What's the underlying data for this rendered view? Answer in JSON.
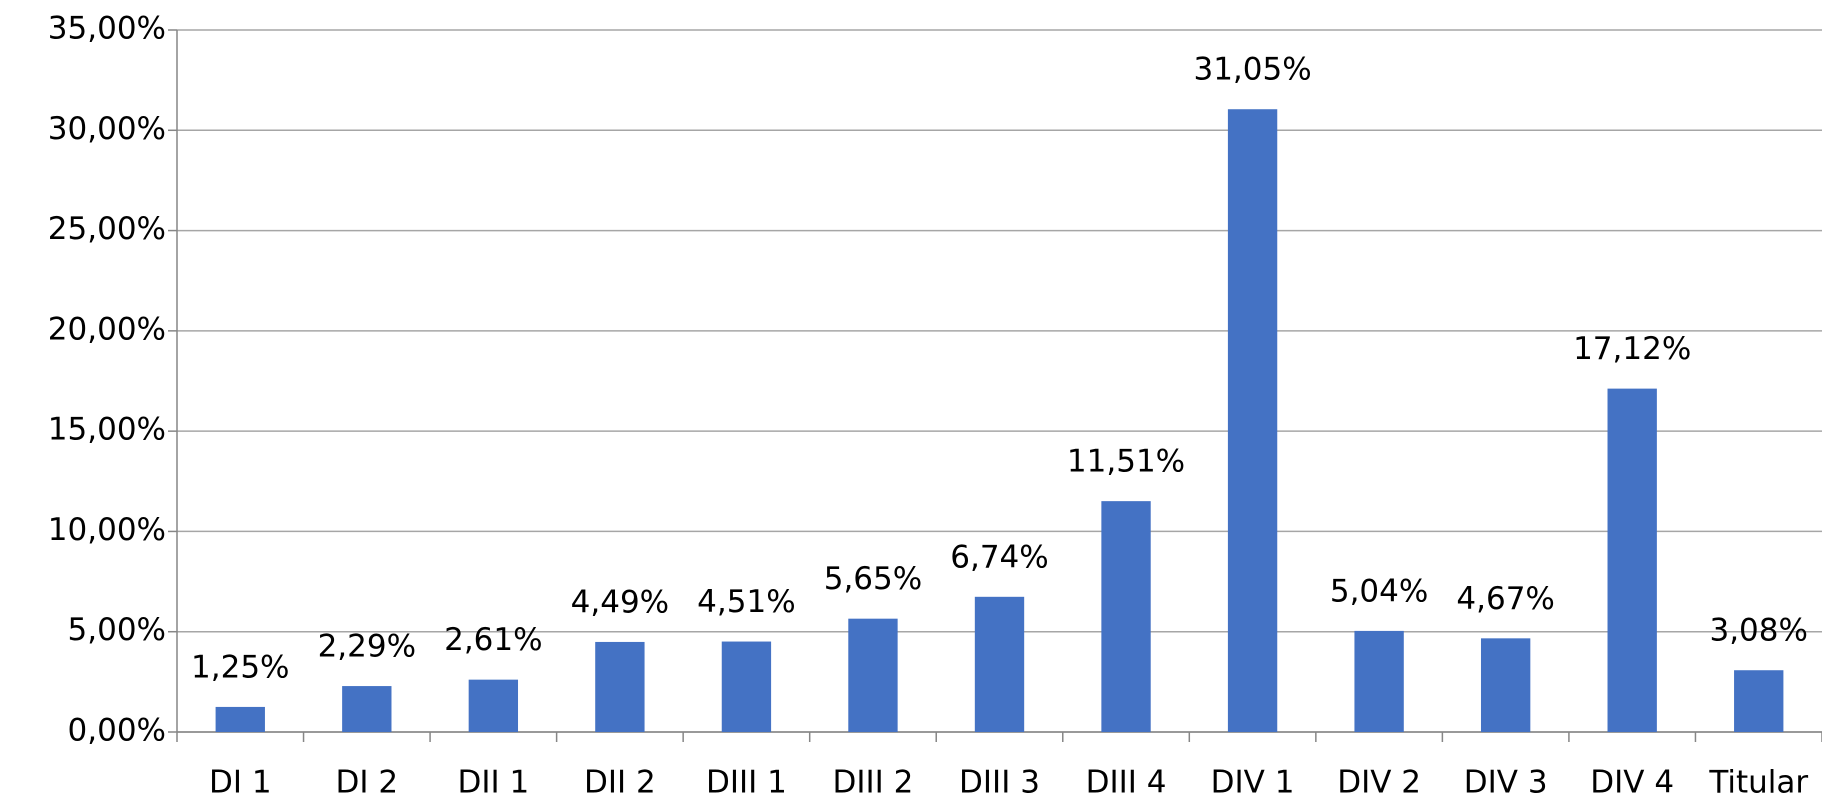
{
  "chart_data": {
    "type": "bar",
    "categories": [
      "DI 1",
      "DI 2",
      "DII 1",
      "DII 2",
      "DIII 1",
      "DIII 2",
      "DIII 3",
      "DIII 4",
      "DIV 1",
      "DIV 2",
      "DIV 3",
      "DIV 4",
      "Titular"
    ],
    "values": [
      1.25,
      2.29,
      2.61,
      4.49,
      4.51,
      5.65,
      6.74,
      11.51,
      31.05,
      5.04,
      4.67,
      17.12,
      3.08
    ],
    "value_labels": [
      "1,25%",
      "2,29%",
      "2,61%",
      "4,49%",
      "4,51%",
      "5,65%",
      "6,74%",
      "11,51%",
      "31,05%",
      "5,04%",
      "4,67%",
      "17,12%",
      "3,08%"
    ],
    "color": "#4472c4",
    "ylim": [
      0,
      35
    ],
    "yticks": [
      {
        "value": 0,
        "label": "0,00%"
      },
      {
        "value": 5,
        "label": "5,00%"
      },
      {
        "value": 10,
        "label": "10,00%"
      },
      {
        "value": 15,
        "label": "15,00%"
      },
      {
        "value": 20,
        "label": "20,00%"
      },
      {
        "value": 25,
        "label": "25,00%"
      },
      {
        "value": 30,
        "label": "30,00%"
      },
      {
        "value": 35,
        "label": "35,00%"
      }
    ],
    "grid": true
  }
}
